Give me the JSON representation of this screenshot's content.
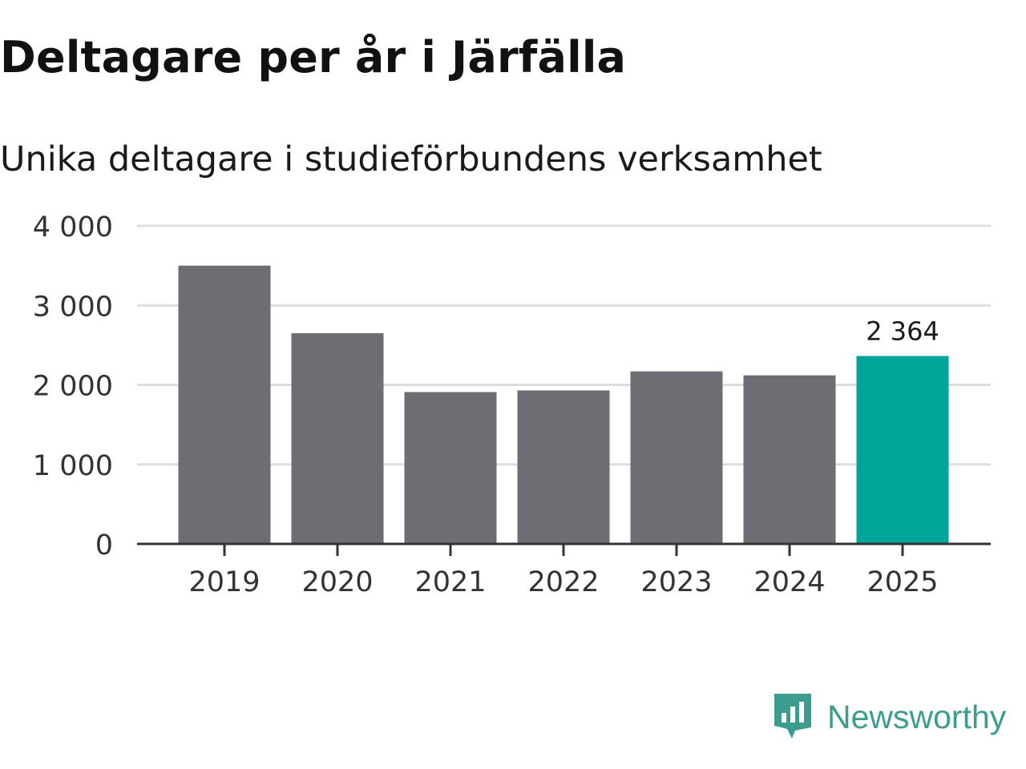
{
  "title": "Deltagare per år i Järfälla",
  "subtitle": "Unika deltagare i studieförbundens verksamhet",
  "brand": {
    "name": "Newsworthy",
    "icon": "newsworthy-logo-icon",
    "color": "#3a9d8f"
  },
  "colors": {
    "bar": "#6e6d73",
    "highlight": "#00a59a",
    "grid": "#dddddd",
    "axis": "#333333",
    "tick_text": "#333333"
  },
  "chart_data": {
    "type": "bar",
    "title": "Deltagare per år i Järfälla",
    "subtitle": "Unika deltagare i studieförbundens verksamhet",
    "xlabel": "",
    "ylabel": "",
    "categories": [
      "2019",
      "2020",
      "2021",
      "2022",
      "2023",
      "2024",
      "2025"
    ],
    "values": [
      3500,
      2650,
      1910,
      1930,
      2170,
      2120,
      2364
    ],
    "ylim": [
      0,
      4000
    ],
    "yticks": [
      0,
      1000,
      2000,
      3000,
      4000
    ],
    "ytick_labels": [
      "0",
      "1 000",
      "2 000",
      "3 000",
      "4 000"
    ],
    "grid": true,
    "highlight_index": 6,
    "data_labels": [
      {
        "index": 6,
        "text": "2 364"
      }
    ]
  }
}
